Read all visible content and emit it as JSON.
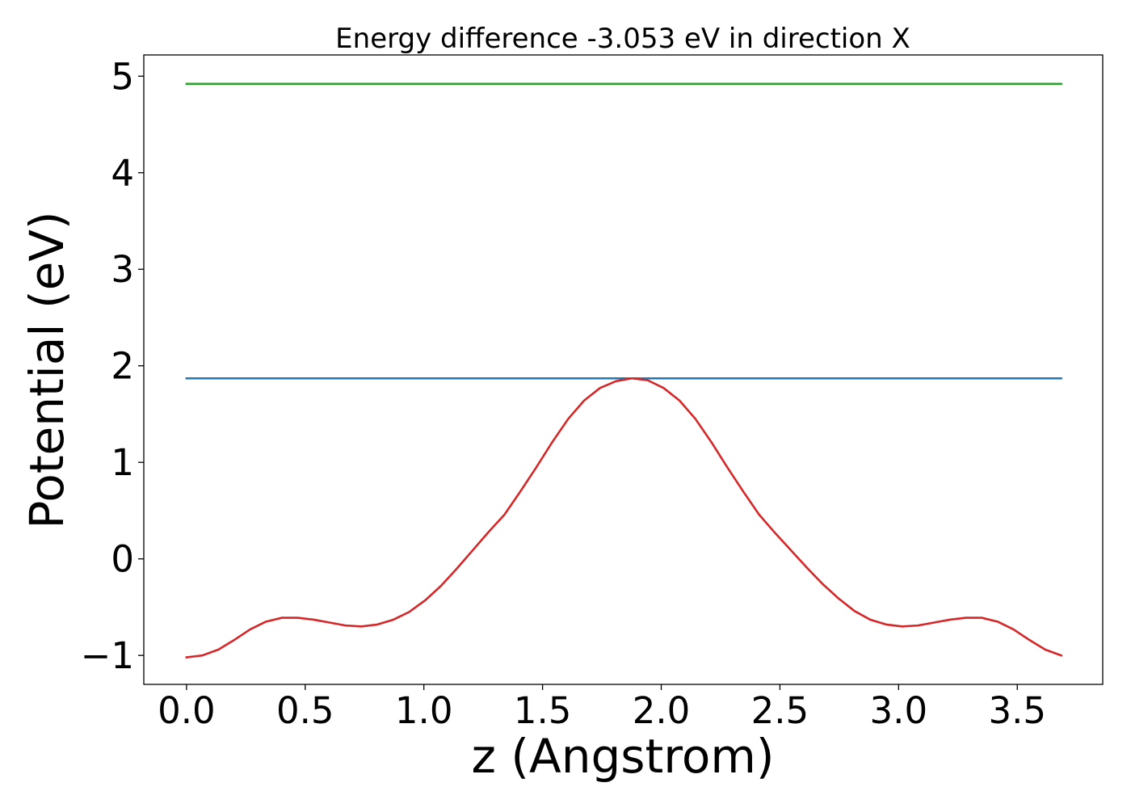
{
  "chart_data": {
    "type": "line",
    "title": "Energy difference -3.053 eV in direction X",
    "xlabel": "z (Angstrom)",
    "ylabel": "Potential (eV)",
    "xlim": [
      -0.18,
      3.86
    ],
    "ylim": [
      -1.3,
      5.22
    ],
    "xticks": [
      0.0,
      0.5,
      1.0,
      1.5,
      2.0,
      2.5,
      3.0,
      3.5
    ],
    "xtick_labels": [
      "0.0",
      "0.5",
      "1.0",
      "1.5",
      "2.0",
      "2.5",
      "3.0",
      "3.5"
    ],
    "yticks": [
      -1,
      0,
      1,
      2,
      3,
      4,
      5
    ],
    "ytick_labels": [
      "−1",
      "0",
      "1",
      "2",
      "3",
      "4",
      "5"
    ],
    "grid": false,
    "legend": false,
    "series": [
      {
        "color": "#2ca02c",
        "x": [
          0.0,
          3.685
        ],
        "y": [
          4.92,
          4.92
        ]
      },
      {
        "color": "#1f77b4",
        "x": [
          0.0,
          3.685
        ],
        "y": [
          1.87,
          1.87
        ]
      },
      {
        "color": "#d62728",
        "x": [
          0.0,
          0.067,
          0.134,
          0.201,
          0.268,
          0.335,
          0.402,
          0.469,
          0.536,
          0.603,
          0.67,
          0.737,
          0.804,
          0.871,
          0.938,
          1.005,
          1.072,
          1.139,
          1.206,
          1.273,
          1.34,
          1.407,
          1.474,
          1.541,
          1.608,
          1.675,
          1.742,
          1.809,
          1.876,
          1.943,
          2.01,
          2.077,
          2.144,
          2.211,
          2.278,
          2.345,
          2.412,
          2.479,
          2.546,
          2.613,
          2.68,
          2.747,
          2.814,
          2.881,
          2.948,
          3.015,
          3.082,
          3.149,
          3.216,
          3.283,
          3.35,
          3.417,
          3.484,
          3.551,
          3.618,
          3.685
        ],
        "y": [
          -1.02,
          -1.0,
          -0.94,
          -0.84,
          -0.73,
          -0.65,
          -0.61,
          -0.61,
          -0.63,
          -0.66,
          -0.69,
          -0.7,
          -0.68,
          -0.63,
          -0.55,
          -0.43,
          -0.28,
          -0.1,
          0.09,
          0.28,
          0.46,
          0.7,
          0.95,
          1.21,
          1.45,
          1.64,
          1.77,
          1.84,
          1.87,
          1.85,
          1.77,
          1.64,
          1.45,
          1.21,
          0.95,
          0.7,
          0.46,
          0.27,
          0.09,
          -0.09,
          -0.26,
          -0.41,
          -0.54,
          -0.63,
          -0.68,
          -0.7,
          -0.69,
          -0.66,
          -0.63,
          -0.61,
          -0.61,
          -0.65,
          -0.73,
          -0.84,
          -0.94,
          -1.0
        ]
      }
    ]
  }
}
